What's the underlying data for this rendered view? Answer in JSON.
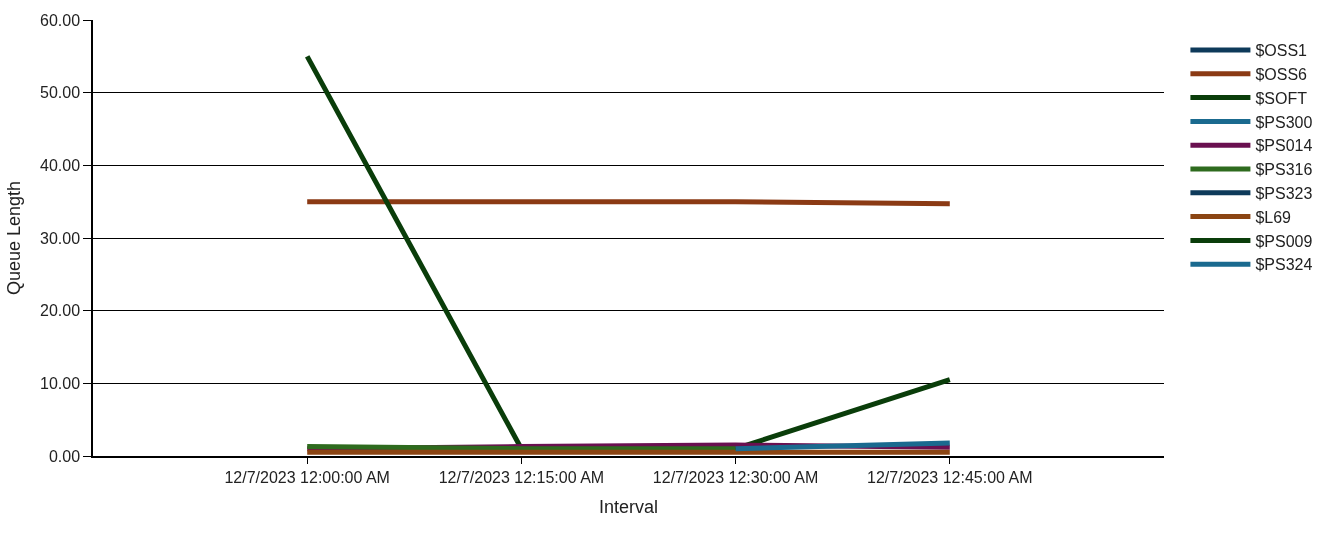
{
  "chart_data": {
    "type": "line",
    "xlabel": "Interval",
    "ylabel": "Queue Length",
    "categories": [
      "12/7/2023 12:00:00 AM",
      "12/7/2023 12:15:00 AM",
      "12/7/2023 12:30:00 AM",
      "12/7/2023 12:45:00 AM"
    ],
    "ylim": [
      0,
      60
    ],
    "yticks": [
      {
        "value": 0,
        "label": "0.00"
      },
      {
        "value": 10,
        "label": "10.00"
      },
      {
        "value": 20,
        "label": "20.00"
      },
      {
        "value": 30,
        "label": "30.00"
      },
      {
        "value": 40,
        "label": "40.00"
      },
      {
        "value": 50,
        "label": "50.00"
      },
      {
        "value": 60,
        "label": "60.00"
      }
    ],
    "grid": "y",
    "legend": "right",
    "marker": "none",
    "line_style": "solid",
    "series": [
      {
        "name": "$OSS1",
        "color": "#0e3a5a",
        "values": [
          null,
          null,
          null,
          null
        ]
      },
      {
        "name": "$OSS6",
        "color": "#8b3a14",
        "values": [
          35,
          35,
          35,
          34.7
        ]
      },
      {
        "name": "$SOFT",
        "color": "#0a3d0a",
        "values": [
          55,
          1,
          1,
          10.5
        ]
      },
      {
        "name": "$PS300",
        "color": "#1a6a8f",
        "values": [
          null,
          null,
          null,
          null
        ]
      },
      {
        "name": "$PS014",
        "color": "#6a1050",
        "values": [
          1,
          1.3,
          1.5,
          1.2
        ]
      },
      {
        "name": "$PS316",
        "color": "#2e6b1e",
        "values": [
          1.3,
          1,
          1,
          null
        ]
      },
      {
        "name": "$PS323",
        "color": "#0e3a5a",
        "values": [
          null,
          null,
          null,
          null
        ]
      },
      {
        "name": "$L69",
        "color": "#8b4513",
        "values": [
          0.5,
          0.5,
          0.5,
          0.5
        ]
      },
      {
        "name": "$PS009",
        "color": "#0a3d0a",
        "values": [
          null,
          null,
          null,
          null
        ]
      },
      {
        "name": "$PS324",
        "color": "#1a6a8f",
        "values": [
          null,
          null,
          1,
          1.8
        ]
      }
    ]
  }
}
